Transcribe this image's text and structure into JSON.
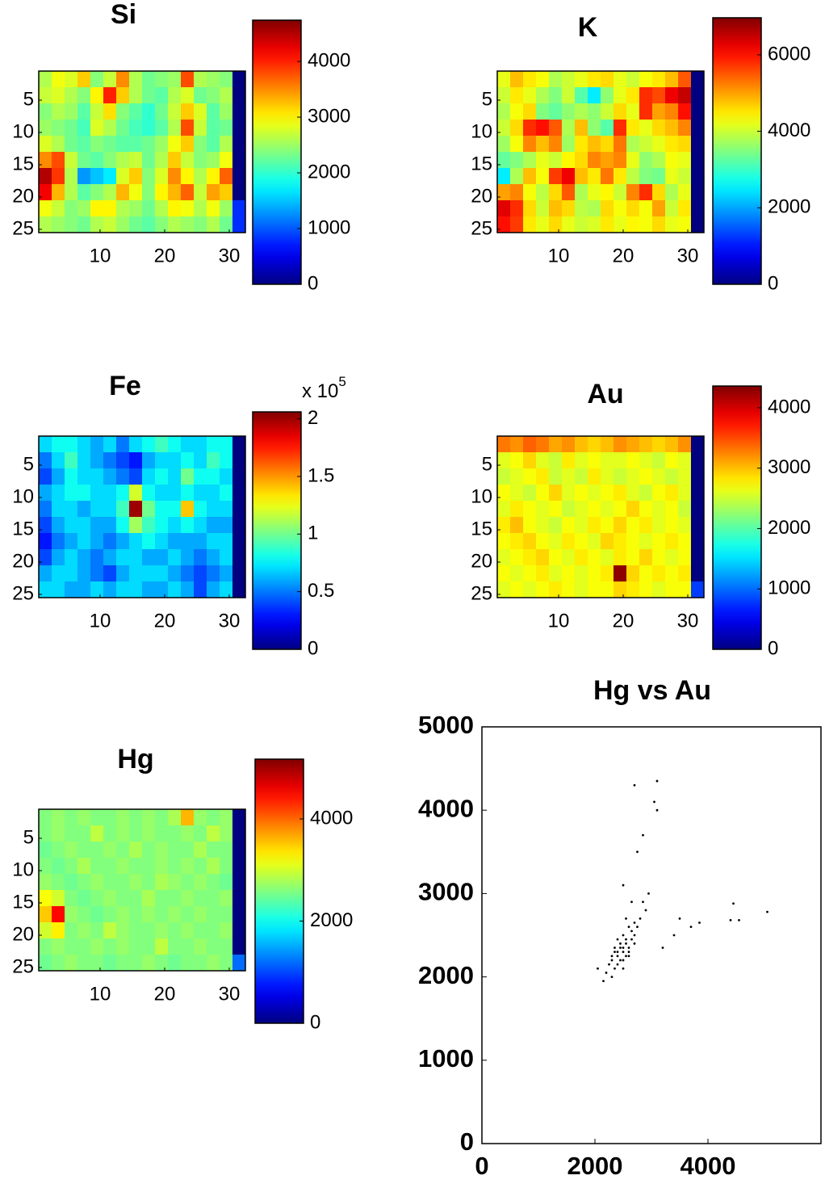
{
  "chart_data": [
    {
      "type": "heatmap",
      "title": "Si",
      "colormap": "jet",
      "xlim": [
        0.5,
        32.5
      ],
      "ylim": [
        0.5,
        25.5
      ],
      "y_inverted": true,
      "xticks": [
        10,
        20,
        30
      ],
      "yticks": [
        5,
        10,
        15,
        20,
        25
      ],
      "clim": [
        0,
        4740
      ],
      "cticks": [
        0,
        1000,
        2000,
        3000,
        4000
      ],
      "values": [
        [
          2600,
          2900,
          2800,
          3200,
          2400,
          2700,
          3500,
          2600,
          2300,
          2400,
          2500,
          3800,
          2600,
          2500,
          2400,
          0
        ],
        [
          2700,
          2800,
          2600,
          2400,
          3000,
          4000,
          3200,
          2600,
          2300,
          2200,
          2600,
          2800,
          2300,
          2400,
          2600,
          0
        ],
        [
          2400,
          2600,
          2500,
          2200,
          2700,
          3100,
          2400,
          2200,
          2000,
          2300,
          2700,
          3200,
          2800,
          2200,
          2500,
          0
        ],
        [
          2500,
          2400,
          2300,
          2100,
          2800,
          2600,
          2300,
          2100,
          2000,
          2200,
          2600,
          3800,
          2700,
          2200,
          2300,
          0
        ],
        [
          2800,
          2600,
          2300,
          2200,
          2400,
          2300,
          2200,
          2200,
          2300,
          2500,
          2900,
          3200,
          2400,
          2200,
          2600,
          0
        ],
        [
          3500,
          3800,
          2700,
          2300,
          2200,
          2400,
          2600,
          2700,
          2300,
          2600,
          3200,
          2700,
          2400,
          2500,
          2900,
          0
        ],
        [
          4500,
          3900,
          2600,
          1300,
          1500,
          1700,
          2800,
          3200,
          2400,
          2800,
          3500,
          3000,
          2600,
          3000,
          3700,
          0
        ],
        [
          4200,
          3300,
          2600,
          2200,
          2400,
          2600,
          3300,
          2900,
          2400,
          3000,
          3300,
          3700,
          2700,
          3400,
          3200,
          0
        ],
        [
          2900,
          2700,
          2400,
          2500,
          3000,
          3000,
          2600,
          2500,
          2300,
          2600,
          3000,
          2900,
          2600,
          2900,
          2500,
          800
        ],
        [
          2600,
          2500,
          2400,
          2300,
          2600,
          2700,
          2500,
          2300,
          2200,
          2400,
          2600,
          2500,
          2400,
          2600,
          2300,
          800
        ]
      ]
    },
    {
      "type": "heatmap",
      "title": "K",
      "colormap": "jet",
      "xlim": [
        0.5,
        32.5
      ],
      "ylim": [
        0.5,
        25.5
      ],
      "y_inverted": true,
      "xticks": [
        10,
        20,
        30
      ],
      "yticks": [
        5,
        10,
        15,
        20,
        25
      ],
      "clim": [
        0,
        6970
      ],
      "cticks": [
        0,
        2000,
        4000,
        6000
      ],
      "values": [
        [
          4200,
          4800,
          4500,
          4300,
          3800,
          4000,
          4200,
          4500,
          4600,
          4200,
          4000,
          4300,
          4500,
          4800,
          5500,
          0
        ],
        [
          4000,
          4500,
          4200,
          3800,
          3500,
          4000,
          3200,
          2500,
          3600,
          4200,
          4500,
          5800,
          5600,
          6200,
          6500,
          0
        ],
        [
          3800,
          4300,
          4600,
          3500,
          3300,
          3600,
          3800,
          3600,
          4000,
          4600,
          4200,
          5800,
          5000,
          5200,
          6000,
          0
        ],
        [
          4000,
          4600,
          5800,
          6000,
          5500,
          3800,
          4800,
          3600,
          3200,
          5800,
          4500,
          4200,
          4600,
          4800,
          5200,
          0
        ],
        [
          3700,
          4300,
          5200,
          4800,
          5200,
          3700,
          4500,
          4800,
          4600,
          5300,
          3800,
          4000,
          4200,
          4500,
          4600,
          0
        ],
        [
          3300,
          3500,
          3800,
          4200,
          4000,
          4400,
          4600,
          5200,
          5000,
          5200,
          4200,
          3600,
          3800,
          4300,
          4200,
          0
        ],
        [
          2500,
          3800,
          4800,
          4300,
          5700,
          6200,
          4800,
          4500,
          5300,
          4500,
          3900,
          3500,
          3400,
          4200,
          4000,
          0
        ],
        [
          5000,
          5200,
          4300,
          3900,
          4600,
          5500,
          3800,
          4200,
          4400,
          4000,
          5200,
          5800,
          4600,
          3800,
          4200,
          0
        ],
        [
          6300,
          5800,
          4600,
          4000,
          4800,
          4600,
          3900,
          3800,
          4600,
          4300,
          4600,
          4300,
          5000,
          4000,
          4500,
          0
        ],
        [
          6000,
          5700,
          4500,
          4200,
          4600,
          4200,
          4000,
          4100,
          4500,
          4200,
          4400,
          4300,
          4600,
          4200,
          4300,
          0
        ]
      ]
    },
    {
      "type": "heatmap",
      "title": "Fe",
      "colormap": "jet",
      "xlim": [
        0.5,
        32.5
      ],
      "ylim": [
        0.5,
        25.5
      ],
      "y_inverted": true,
      "xticks": [
        10,
        20,
        30
      ],
      "yticks": [
        5,
        10,
        15,
        20,
        25
      ],
      "clim": [
        0,
        2.06
      ],
      "cticks": [
        0,
        0.5,
        1,
        1.5,
        2
      ],
      "cbar_multiplier": "x 10",
      "cbar_exponent": "5",
      "values": [
        [
          0.7,
          0.8,
          0.8,
          0.7,
          0.6,
          0.7,
          0.5,
          0.7,
          0.8,
          0.9,
          0.8,
          0.7,
          0.7,
          0.8,
          0.8,
          0.0
        ],
        [
          0.5,
          0.7,
          0.9,
          0.7,
          0.6,
          0.5,
          0.4,
          0.3,
          0.6,
          0.7,
          0.7,
          0.8,
          0.7,
          0.9,
          0.8,
          0.0
        ],
        [
          0.4,
          0.6,
          0.8,
          0.7,
          0.7,
          0.6,
          0.5,
          0.4,
          0.7,
          0.8,
          0.7,
          1.0,
          0.8,
          0.8,
          0.7,
          0.0
        ],
        [
          0.6,
          0.7,
          0.8,
          0.8,
          0.7,
          0.7,
          0.8,
          1.2,
          0.8,
          0.7,
          0.7,
          0.8,
          0.7,
          0.7,
          0.8,
          0.0
        ],
        [
          0.5,
          0.7,
          0.7,
          0.6,
          0.7,
          0.7,
          0.9,
          2.0,
          1.0,
          0.8,
          0.8,
          1.4,
          0.8,
          0.7,
          0.7,
          0.0
        ],
        [
          0.4,
          0.6,
          0.7,
          0.7,
          0.6,
          0.6,
          0.8,
          1.1,
          0.9,
          0.8,
          0.7,
          0.8,
          0.7,
          0.6,
          0.6,
          0.0
        ],
        [
          0.3,
          0.5,
          0.6,
          0.7,
          0.6,
          0.5,
          0.6,
          0.7,
          0.8,
          0.7,
          0.6,
          0.6,
          0.6,
          0.7,
          0.7,
          0.0
        ],
        [
          0.4,
          0.6,
          0.7,
          0.6,
          0.5,
          0.6,
          0.7,
          0.7,
          0.6,
          0.6,
          0.7,
          0.6,
          0.5,
          0.6,
          0.7,
          0.0
        ],
        [
          0.6,
          0.7,
          0.7,
          0.6,
          0.5,
          0.4,
          0.6,
          0.7,
          0.7,
          0.7,
          0.6,
          0.5,
          0.4,
          0.5,
          0.6,
          0.0
        ],
        [
          0.7,
          0.7,
          0.6,
          0.6,
          0.7,
          0.6,
          0.7,
          0.7,
          0.6,
          0.6,
          0.7,
          0.6,
          0.4,
          0.6,
          0.7,
          0.0
        ]
      ]
    },
    {
      "type": "heatmap",
      "title": "Au",
      "colormap": "jet",
      "xlim": [
        0.5,
        32.5
      ],
      "ylim": [
        0.5,
        25.5
      ],
      "y_inverted": true,
      "xticks": [
        10,
        20,
        30
      ],
      "yticks": [
        5,
        10,
        15,
        20,
        25
      ],
      "clim": [
        0,
        4360
      ],
      "cticks": [
        0,
        1000,
        2000,
        3000,
        4000
      ],
      "values": [
        [
          3300,
          3200,
          3400,
          3300,
          3100,
          3200,
          3000,
          2900,
          3000,
          3200,
          3100,
          3000,
          2900,
          3000,
          3200,
          0
        ],
        [
          2600,
          2700,
          2900,
          2600,
          2500,
          2800,
          2600,
          2700,
          2600,
          2600,
          2700,
          2600,
          2500,
          2700,
          2600,
          0
        ],
        [
          2500,
          2600,
          2700,
          2800,
          2500,
          2600,
          2500,
          2800,
          2600,
          2500,
          2600,
          2700,
          2600,
          2500,
          2600,
          0
        ],
        [
          2700,
          2600,
          2500,
          2700,
          2900,
          2600,
          2700,
          2600,
          2700,
          2800,
          2600,
          2500,
          2700,
          2800,
          2600,
          0
        ],
        [
          2600,
          2800,
          2700,
          2600,
          2700,
          2500,
          2600,
          2700,
          2600,
          2700,
          2900,
          2700,
          2600,
          2700,
          2500,
          0
        ],
        [
          2800,
          3000,
          2700,
          2600,
          2500,
          2700,
          2600,
          2800,
          2700,
          2900,
          2700,
          2800,
          2600,
          2700,
          2600,
          0
        ],
        [
          2700,
          2800,
          2900,
          2700,
          2600,
          2800,
          2700,
          2600,
          2900,
          2800,
          2700,
          2600,
          2700,
          2800,
          2700,
          0
        ],
        [
          2600,
          2700,
          2800,
          2900,
          2700,
          2600,
          2800,
          2700,
          2600,
          2800,
          2700,
          2900,
          2700,
          2600,
          2700,
          0
        ],
        [
          2700,
          2600,
          2700,
          2800,
          2600,
          2700,
          2600,
          2700,
          2800,
          4300,
          2900,
          2700,
          2800,
          2700,
          2800,
          0
        ],
        [
          2600,
          2700,
          2600,
          2700,
          2800,
          2700,
          2600,
          2700,
          2700,
          2900,
          2800,
          2700,
          2600,
          2700,
          2700,
          800
        ]
      ]
    },
    {
      "type": "heatmap",
      "title": "Hg",
      "colormap": "jet",
      "xlim": [
        0.5,
        32.5
      ],
      "ylim": [
        0.5,
        25.5
      ],
      "y_inverted": true,
      "xticks": [
        10,
        20,
        30
      ],
      "yticks": [
        5,
        10,
        15,
        20,
        25
      ],
      "clim": [
        0,
        5170
      ],
      "cticks": [
        0,
        2000,
        4000
      ],
      "values": [
        [
          2600,
          2700,
          2600,
          2700,
          2600,
          2600,
          2700,
          2600,
          2700,
          2600,
          2800,
          3600,
          2700,
          2600,
          2700,
          0
        ],
        [
          2600,
          2700,
          2600,
          2600,
          2900,
          2600,
          2700,
          2600,
          2700,
          2600,
          2600,
          2700,
          2600,
          2900,
          2700,
          0
        ],
        [
          2500,
          2600,
          2700,
          2600,
          2600,
          2700,
          2600,
          2800,
          2600,
          2700,
          2600,
          2600,
          2800,
          2600,
          2600,
          0
        ],
        [
          2600,
          2500,
          2600,
          2800,
          2600,
          2600,
          2700,
          2600,
          2600,
          2700,
          2600,
          2700,
          2600,
          2800,
          2600,
          0
        ],
        [
          2700,
          2600,
          2500,
          2600,
          2700,
          2600,
          2600,
          2700,
          2600,
          2800,
          2700,
          2600,
          2700,
          2600,
          2500,
          0
        ],
        [
          3200,
          3000,
          2600,
          2500,
          2600,
          2700,
          2600,
          2600,
          2800,
          2600,
          2600,
          2700,
          2600,
          2600,
          2700,
          0
        ],
        [
          3500,
          4500,
          2700,
          2600,
          2500,
          2600,
          2700,
          2600,
          2700,
          2600,
          2700,
          2600,
          2700,
          2600,
          2600,
          0
        ],
        [
          3000,
          3300,
          2600,
          2700,
          2600,
          2900,
          2700,
          2600,
          2600,
          2700,
          2600,
          2700,
          2600,
          2600,
          2700,
          0
        ],
        [
          2600,
          2700,
          2600,
          2600,
          2700,
          2600,
          2700,
          2600,
          2600,
          2900,
          2600,
          2600,
          2700,
          2600,
          2600,
          0
        ],
        [
          2500,
          2600,
          2700,
          2600,
          2600,
          2500,
          2600,
          2600,
          2700,
          2600,
          2500,
          2600,
          2600,
          2700,
          2600,
          1200
        ]
      ]
    },
    {
      "type": "scatter",
      "title": "Hg vs Au",
      "color": "#000000",
      "xlim": [
        0,
        6000
      ],
      "ylim": [
        0,
        5000
      ],
      "xticks": [
        0,
        2000,
        4000
      ],
      "yticks": [
        0,
        1000,
        2000,
        3000,
        4000,
        5000
      ],
      "x": [
        2300,
        2350,
        2400,
        2450,
        2500,
        2550,
        2600,
        2650,
        2700,
        2400,
        2500,
        2600,
        2450,
        2550,
        2350,
        2500,
        2600,
        2700,
        2800,
        2900,
        2200,
        2250,
        2300,
        2400,
        2500,
        2550,
        2650,
        2750,
        2450,
        2350,
        2500,
        2600,
        2700,
        2400,
        2300,
        2550,
        2650,
        2850,
        2950,
        2500,
        2700,
        3100,
        3050,
        3100,
        2850,
        2750,
        4450,
        4400,
        4550,
        5050,
        3500,
        3700,
        3200,
        3400,
        3850,
        2150,
        2050
      ],
      "y": [
        2200,
        2300,
        2250,
        2350,
        2300,
        2400,
        2350,
        2450,
        2500,
        2150,
        2200,
        2300,
        2400,
        2250,
        2100,
        2500,
        2600,
        2650,
        2700,
        2800,
        2050,
        2150,
        2000,
        2300,
        2350,
        2450,
        2550,
        2600,
        2200,
        2350,
        2100,
        2250,
        2400,
        2450,
        2250,
        2700,
        2900,
        2900,
        3000,
        3100,
        4300,
        4350,
        4100,
        4000,
        3700,
        3500,
        2880,
        2680,
        2680,
        2780,
        2700,
        2600,
        2350,
        2500,
        2650,
        1950,
        2100
      ]
    }
  ]
}
